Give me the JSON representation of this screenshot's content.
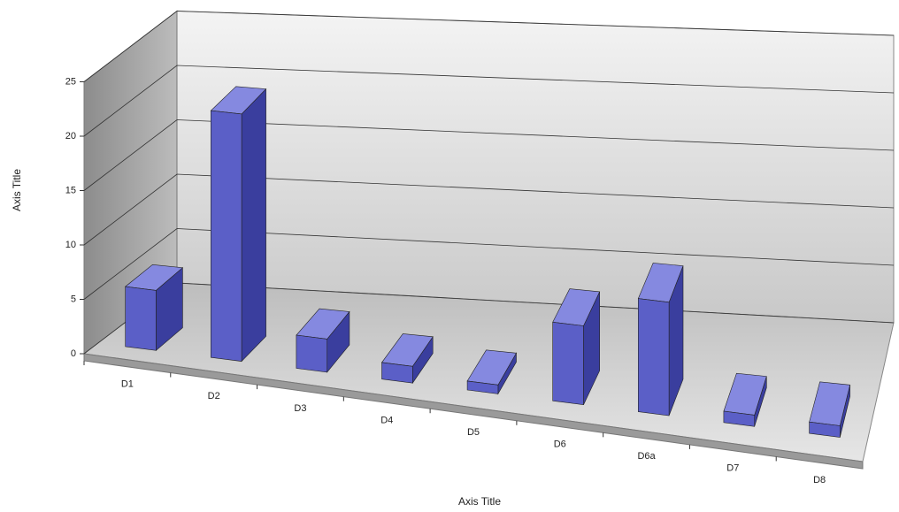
{
  "chart_data": {
    "type": "bar3d",
    "categories": [
      "D1",
      "D2",
      "D3",
      "D4",
      "D5",
      "D6",
      "D6a",
      "D7",
      "D8"
    ],
    "values": [
      5.5,
      22.5,
      3,
      1.5,
      0.8,
      7,
      10,
      1,
      1
    ],
    "color": "#5b5fc7",
    "ylim": [
      0,
      25
    ],
    "yticks": [
      0,
      5,
      10,
      15,
      20,
      25
    ],
    "x_label": "Axis Title",
    "y_label": "Axis Title",
    "grid": true
  }
}
